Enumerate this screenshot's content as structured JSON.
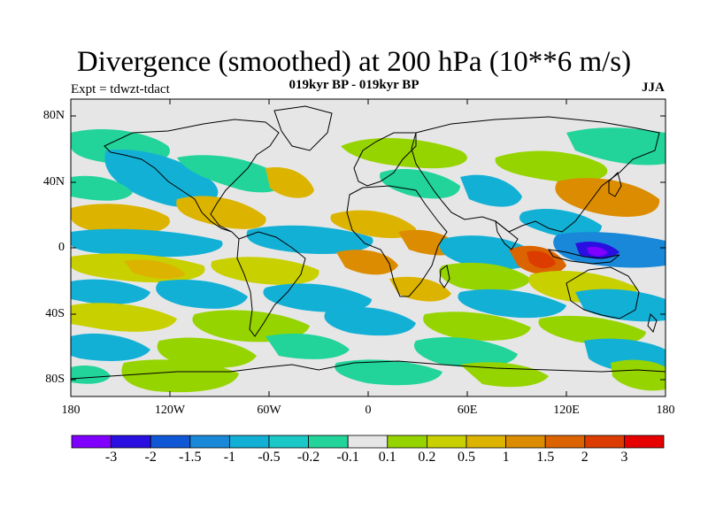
{
  "figure": {
    "title": "Divergence (smoothed) at 200 hPa (10**6 m/s)",
    "subtitle": "019kyr BP - 019kyr BP",
    "left_label": "Expt = tdwzt-tdact",
    "right_label": "JJA"
  },
  "map": {
    "projection": "cylindrical equidistant",
    "lat_ticks": [
      "80N",
      "40N",
      "0",
      "40S",
      "80S"
    ],
    "lon_ticks": [
      "180",
      "120W",
      "60W",
      "0",
      "60E",
      "120E",
      "180"
    ],
    "background_color": "#e6e6e6",
    "coastline_color": "#000000"
  },
  "colorbar": {
    "levels": [
      "-3",
      "-2",
      "-1.5",
      "-1",
      "-0.5",
      "-0.2",
      "-0.1",
      "0.1",
      "0.2",
      "0.5",
      "1",
      "1.5",
      "2",
      "3"
    ],
    "colors": [
      "#7f00ff",
      "#2a10e0",
      "#1057d6",
      "#1a88d8",
      "#13b0d6",
      "#1ac8c8",
      "#22d49a",
      "#e6e6e6",
      "#96d400",
      "#c8d000",
      "#dcb400",
      "#dc8c00",
      "#dc6400",
      "#dc3c00",
      "#e60000"
    ]
  }
}
